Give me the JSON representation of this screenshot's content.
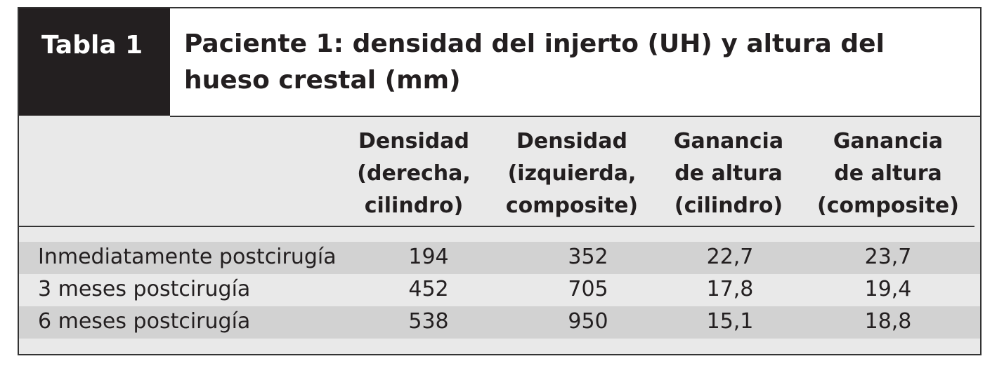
{
  "header": {
    "label": "Tabla 1",
    "title": [
      "Paciente 1: densidad del injerto (UH) y altura del",
      "hueso crestal (mm)"
    ]
  },
  "table": {
    "columns": [
      [
        "Densidad",
        "(derecha,",
        "cilindro)"
      ],
      [
        "Densidad",
        "(izquierda,",
        "composite)"
      ],
      [
        "Ganancia",
        "de altura",
        "(cilindro)"
      ],
      [
        "Ganancia",
        "de altura",
        "(composite)"
      ]
    ],
    "rows": [
      [
        "Inmediatamente postcirugía",
        "194",
        "352",
        "22,7",
        "23,7"
      ],
      [
        "3 meses postcirugía",
        "452",
        "705",
        "17,8",
        "19,4"
      ],
      [
        "6 meses postcirugía",
        "538",
        "950",
        "15,1",
        "18,8"
      ]
    ]
  }
}
